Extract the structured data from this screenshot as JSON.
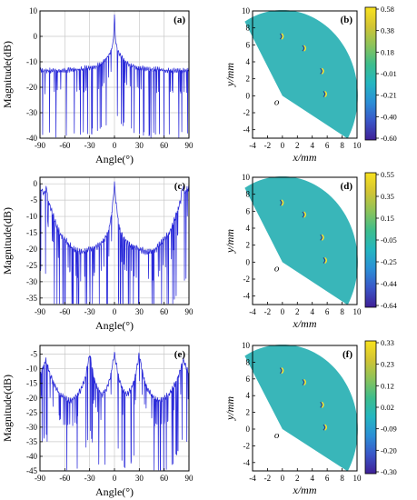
{
  "figure": {
    "panel_labels": [
      "(a)",
      "(b)",
      "(c)",
      "(d)",
      "(e)",
      "(f)"
    ]
  },
  "colors": {
    "line": "#2b2bd9",
    "grid": "#c8c8c8",
    "sector_fill": "#39b6b9",
    "colormap": [
      "#3f1f96",
      "#3a56c8",
      "#2b8fd6",
      "#24b6c0",
      "#3dbd8c",
      "#8cc35a",
      "#d2c433",
      "#f9e21e"
    ]
  },
  "chart_data": [
    {
      "panel": "(a)",
      "type": "line",
      "xlabel": "Angle(°)",
      "ylabel": "Magnitude(dB)",
      "xlim": [
        -90,
        90
      ],
      "ylim": [
        -40,
        10
      ],
      "xticks": [
        -90,
        -60,
        -30,
        0,
        30,
        60,
        90
      ],
      "yticks": [
        10,
        0,
        -10,
        -20,
        -30,
        -40
      ],
      "grid": true,
      "series": [
        {
          "x": [
            -90,
            -85,
            -80,
            -75,
            -70,
            -65,
            -60,
            -55,
            -50,
            -45,
            -40,
            -35,
            -30,
            -25,
            -20,
            -15,
            -10,
            -8,
            -6,
            -4,
            -2,
            -1,
            0,
            1,
            2,
            4,
            6,
            8,
            10,
            15,
            20,
            25,
            30,
            35,
            40,
            45,
            50,
            55,
            60,
            65,
            70,
            75,
            80,
            85,
            90
          ],
          "y": [
            -13,
            -13.5,
            -13.5,
            -13.5,
            -13.5,
            -13.5,
            -13.5,
            -13,
            -13,
            -13,
            -13,
            -12.5,
            -12.5,
            -12,
            -11.5,
            -10.5,
            -9,
            -8,
            -7,
            -5.5,
            -3,
            0,
            8,
            0,
            -3,
            -5.5,
            -7,
            -8,
            -9,
            -10.5,
            -11.5,
            -12,
            -12.5,
            -12.5,
            -13,
            -13,
            -13,
            -13,
            -13.5,
            -13.5,
            -13.5,
            -13.5,
            -13.5,
            -13.5,
            -13
          ]
        }
      ]
    },
    {
      "panel": "(b)",
      "type": "heatmap",
      "xlabel": "x/mm",
      "ylabel": "y/mm",
      "xlim": [
        -4,
        10
      ],
      "ylim": [
        -5,
        10
      ],
      "xticks": [
        -4,
        -2,
        0,
        2,
        4,
        6,
        8,
        10
      ],
      "yticks": [
        10,
        8,
        6,
        4,
        2,
        0,
        -2,
        -4
      ],
      "origin_label": "o",
      "colorbar_ticks": [
        "0.58",
        "0.38",
        "0.18",
        "-0.01",
        "-0.21",
        "-0.40",
        "-0.60"
      ],
      "targets": [
        {
          "x": 0,
          "y": 7
        },
        {
          "x": 3,
          "y": 5.6
        },
        {
          "x": 5.4,
          "y": 2.9
        },
        {
          "x": 5.8,
          "y": 0.2
        }
      ]
    },
    {
      "panel": "(c)",
      "type": "line",
      "xlabel": "Angle(°)",
      "ylabel": "Magnitude(dB)",
      "xlim": [
        -90,
        90
      ],
      "ylim": [
        -37,
        2
      ],
      "xticks": [
        -90,
        -60,
        -30,
        0,
        30,
        60,
        90
      ],
      "yticks": [
        0,
        -5,
        -10,
        -15,
        -20,
        -25,
        -30,
        -35
      ],
      "grid": true,
      "series": [
        {
          "x": [
            -90,
            -85,
            -82,
            -80,
            -75,
            -70,
            -65,
            -60,
            -55,
            -50,
            -45,
            -40,
            -35,
            -30,
            -25,
            -20,
            -15,
            -10,
            -8,
            -6,
            -4,
            -2,
            -1,
            0,
            1,
            2,
            4,
            6,
            8,
            10,
            15,
            20,
            25,
            30,
            35,
            40,
            45,
            50,
            55,
            60,
            65,
            70,
            75,
            80,
            82,
            85,
            90
          ],
          "y": [
            -1,
            -3,
            -1,
            -5,
            -9,
            -13,
            -15.5,
            -17,
            -18.5,
            -20,
            -20.5,
            -21,
            -20.5,
            -20,
            -19.5,
            -19,
            -18,
            -16,
            -15,
            -13,
            -10,
            -6,
            -3,
            0,
            -3,
            -6,
            -10,
            -13,
            -15,
            -16,
            -18,
            -19,
            -19.5,
            -20,
            -20.5,
            -21,
            -20.5,
            -20,
            -18.5,
            -17,
            -15.5,
            -13,
            -9,
            -5,
            -1,
            -3,
            -1
          ]
        }
      ]
    },
    {
      "panel": "(d)",
      "type": "heatmap",
      "xlabel": "x/mm",
      "ylabel": "y/mm",
      "xlim": [
        -4,
        10
      ],
      "ylim": [
        -5,
        10
      ],
      "xticks": [
        -4,
        -2,
        0,
        2,
        4,
        6,
        8,
        10
      ],
      "yticks": [
        10,
        8,
        6,
        4,
        2,
        0,
        -2,
        -4
      ],
      "origin_label": "o",
      "colorbar_ticks": [
        "0.55",
        "0.35",
        "0.15",
        "-0.05",
        "-0.25",
        "-0.44",
        "-0.64"
      ],
      "targets": [
        {
          "x": 0,
          "y": 7
        },
        {
          "x": 3,
          "y": 5.6
        },
        {
          "x": 5.4,
          "y": 2.9
        },
        {
          "x": 5.8,
          "y": 0.2
        }
      ]
    },
    {
      "panel": "(e)",
      "type": "line",
      "xlabel": "Angle(°)",
      "ylabel": "Magnitude(dB)",
      "xlim": [
        -90,
        90
      ],
      "ylim": [
        -45,
        -2
      ],
      "xticks": [
        -90,
        -60,
        -30,
        0,
        30,
        60,
        90
      ],
      "yticks": [
        -5,
        -10,
        -15,
        -20,
        -25,
        -30,
        -35,
        -40,
        -45
      ],
      "grid": true,
      "series": [
        {
          "x": [
            -90,
            -86,
            -83,
            -80,
            -75,
            -70,
            -65,
            -60,
            -55,
            -50,
            -45,
            -40,
            -35,
            -32,
            -30,
            -28,
            -25,
            -20,
            -15,
            -10,
            -5,
            -2,
            0,
            2,
            5,
            10,
            15,
            20,
            25,
            28,
            30,
            32,
            35,
            40,
            45,
            50,
            55,
            60,
            65,
            70,
            75,
            80,
            83,
            86,
            90
          ],
          "y": [
            -12,
            -9,
            -7,
            -10,
            -14,
            -17,
            -19,
            -20,
            -21,
            -20.5,
            -19,
            -17,
            -13,
            -8,
            -5,
            -8,
            -13,
            -17,
            -19,
            -17,
            -13,
            -8,
            -5,
            -8,
            -13,
            -17,
            -19,
            -17,
            -13,
            -8,
            -5,
            -8,
            -13,
            -17,
            -19,
            -20.5,
            -21,
            -20,
            -19,
            -17,
            -14,
            -10,
            -7,
            -9,
            -12
          ]
        }
      ]
    },
    {
      "panel": "(f)",
      "type": "heatmap",
      "xlabel": "x/mm",
      "ylabel": "y/mm",
      "xlim": [
        -4,
        10
      ],
      "ylim": [
        -5,
        10
      ],
      "xticks": [
        -4,
        -2,
        0,
        2,
        4,
        6,
        8,
        10
      ],
      "yticks": [
        10,
        8,
        6,
        4,
        2,
        0,
        -2,
        -4
      ],
      "origin_label": "o",
      "colorbar_ticks": [
        "0.33",
        "0.23",
        "0.12",
        "0.02",
        "-0.09",
        "-0.20",
        "-0.30"
      ],
      "targets": [
        {
          "x": 0,
          "y": 7
        },
        {
          "x": 3,
          "y": 5.6
        },
        {
          "x": 5.4,
          "y": 2.9
        },
        {
          "x": 5.8,
          "y": 0.2
        }
      ]
    }
  ]
}
